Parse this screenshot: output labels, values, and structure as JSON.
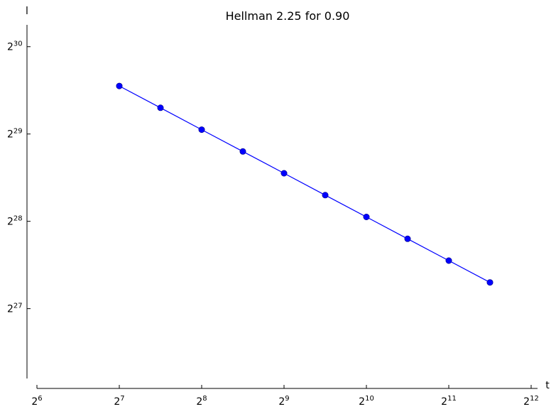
{
  "chart_data": {
    "type": "line",
    "title": "Hellman 2.25 for 0.90",
    "xlabel": "t",
    "ylabel": "l",
    "x_scale": "log2",
    "y_scale": "log2",
    "xlim_exp": [
      6,
      12
    ],
    "ylim_exp": [
      26.2,
      30.25
    ],
    "x_tick_exponents": [
      "6",
      "7",
      "8",
      "9",
      "10",
      "11",
      "12"
    ],
    "y_tick_exponents": [
      "27",
      "28",
      "29",
      "30"
    ],
    "tick_base": "2",
    "series": [
      {
        "color": "#0000ff",
        "marker": "circle",
        "x_exp": [
          7,
          7.5,
          8,
          8.5,
          9,
          9.5,
          10,
          10.5,
          11,
          11.5
        ],
        "y_exp": [
          29.55,
          29.3,
          29.05,
          28.8,
          28.55,
          28.3,
          28.05,
          27.8,
          27.55,
          27.3
        ]
      }
    ]
  }
}
